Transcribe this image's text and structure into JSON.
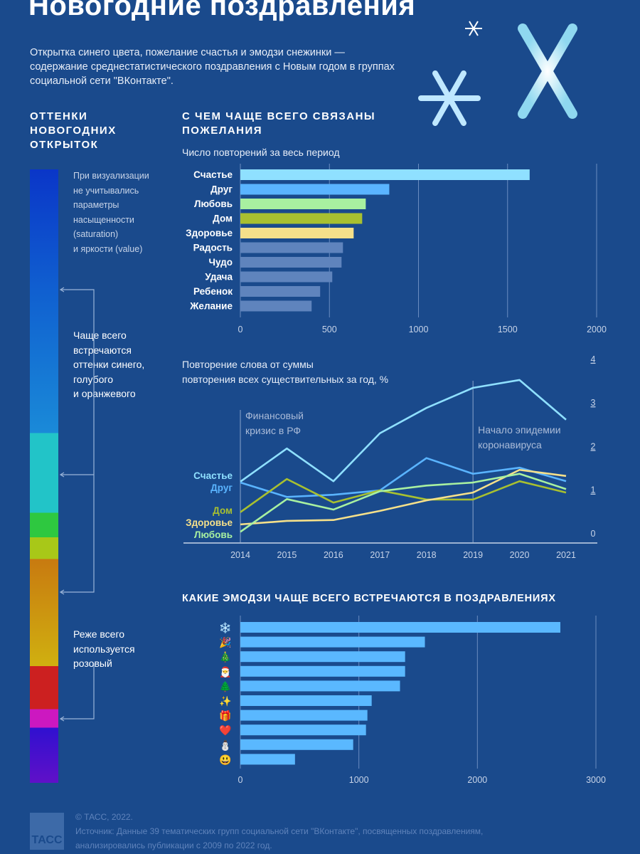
{
  "title": "Новогодние поздравления",
  "lead": "Открытка синего цвета, пожелание счастья и эмодзи снежинки — содержание среднестатистического поздравления с Новым годом в группах социальной сети \"ВКонтакте\".",
  "colors_section": {
    "heading": [
      "ОТТЕНКИ",
      "НОВОГОДНИХ",
      "ОТКРЫТОК"
    ],
    "note": [
      "При визуализации",
      "не учитывались",
      "параметры",
      "насыщенности",
      "(saturation)",
      "и яркости (value)"
    ],
    "frequent": [
      "Чаще всего",
      "встречаются",
      "оттенки синего,",
      "голубого",
      "и оранжевого"
    ],
    "rare": [
      "Реже всего",
      "используется",
      "розовый"
    ]
  },
  "chart_data": [
    {
      "type": "bar",
      "title": "С ЧЕМ ЧАЩЕ ВСЕГО СВЯЗАНЫ ПОЖЕЛАНИЯ",
      "subtitle": "Число повторений за весь период",
      "categories": [
        "Счастье",
        "Друг",
        "Любовь",
        "Дом",
        "Здоровье",
        "Радость",
        "Чудо",
        "Удача",
        "Ребенок",
        "Желание"
      ],
      "values": [
        1624,
        836,
        704,
        684,
        636,
        576,
        568,
        516,
        448,
        400
      ],
      "colors": [
        "#8fe0ff",
        "#5ab4ff",
        "#a8f0a0",
        "#a8c030",
        "#f5e08a",
        "#5f84bd",
        "#5f84bd",
        "#5f84bd",
        "#5f84bd",
        "#5f84bd"
      ],
      "xlim": [
        0,
        2000
      ],
      "xticks": [
        0,
        500,
        1000,
        1500,
        2000
      ],
      "grid": true
    },
    {
      "type": "line",
      "title": "Повторение слова от суммы повторения всех существительных за год, %",
      "x": [
        2014,
        2015,
        2016,
        2017,
        2018,
        2019,
        2020,
        2021
      ],
      "ylim": [
        0,
        4
      ],
      "yticks": [
        0,
        1,
        2,
        3,
        4
      ],
      "series": [
        {
          "name": "Счастье",
          "color": "#8fe0ff",
          "values": [
            1.39,
            2.15,
            1.4,
            2.5,
            3.08,
            3.54,
            3.72,
            2.81
          ]
        },
        {
          "name": "Друг",
          "color": "#5ab4ff",
          "values": [
            1.37,
            1.04,
            1.09,
            1.19,
            1.93,
            1.57,
            1.71,
            1.4
          ]
        },
        {
          "name": "Дом",
          "color": "#a8c030",
          "values": [
            0.69,
            1.45,
            0.91,
            1.19,
            0.98,
            0.98,
            1.4,
            1.14
          ]
        },
        {
          "name": "Здоровье",
          "color": "#f5e08a",
          "values": [
            0.41,
            0.49,
            0.51,
            0.72,
            0.96,
            1.14,
            1.66,
            1.52
          ]
        },
        {
          "name": "Любовь",
          "color": "#a8f0a0",
          "values": [
            0.24,
            0.99,
            0.75,
            1.17,
            1.3,
            1.37,
            1.57,
            1.22
          ]
        }
      ],
      "annotations": [
        {
          "x": 2014,
          "text": [
            "Финансовый",
            "кризис в РФ"
          ]
        },
        {
          "x": 2019,
          "text": [
            "Начало эпидемии",
            "коронавируса"
          ]
        }
      ]
    },
    {
      "type": "bar",
      "title": "КАКИЕ ЭМОДЗИ ЧАЩЕ ВСЕГО ВСТРЕЧАЮТСЯ В ПОЗДРАВЛЕНИЯХ",
      "categories": [
        "❄️",
        "🎉",
        "🎄",
        "🎅",
        "🌲",
        "✨",
        "🎁",
        "❤️",
        "⛄",
        "😃"
      ],
      "values": [
        2700,
        1557,
        1390,
        1390,
        1347,
        1108,
        1072,
        1060,
        952,
        461
      ],
      "color": "#5ab8ff",
      "xlim": [
        0,
        3000
      ],
      "xticks": [
        0,
        1000,
        2000,
        3000
      ],
      "grid": true
    }
  ],
  "footer": {
    "logo": "ТАСС",
    "copyright": "© ТАСС, 2022.",
    "source": "Источник: Данные 39 тематических групп социальной сети \"ВКонтакте\", посвященных поздравлениям,",
    "source2": "анализировались публикации с 2009 по 2022 год."
  }
}
